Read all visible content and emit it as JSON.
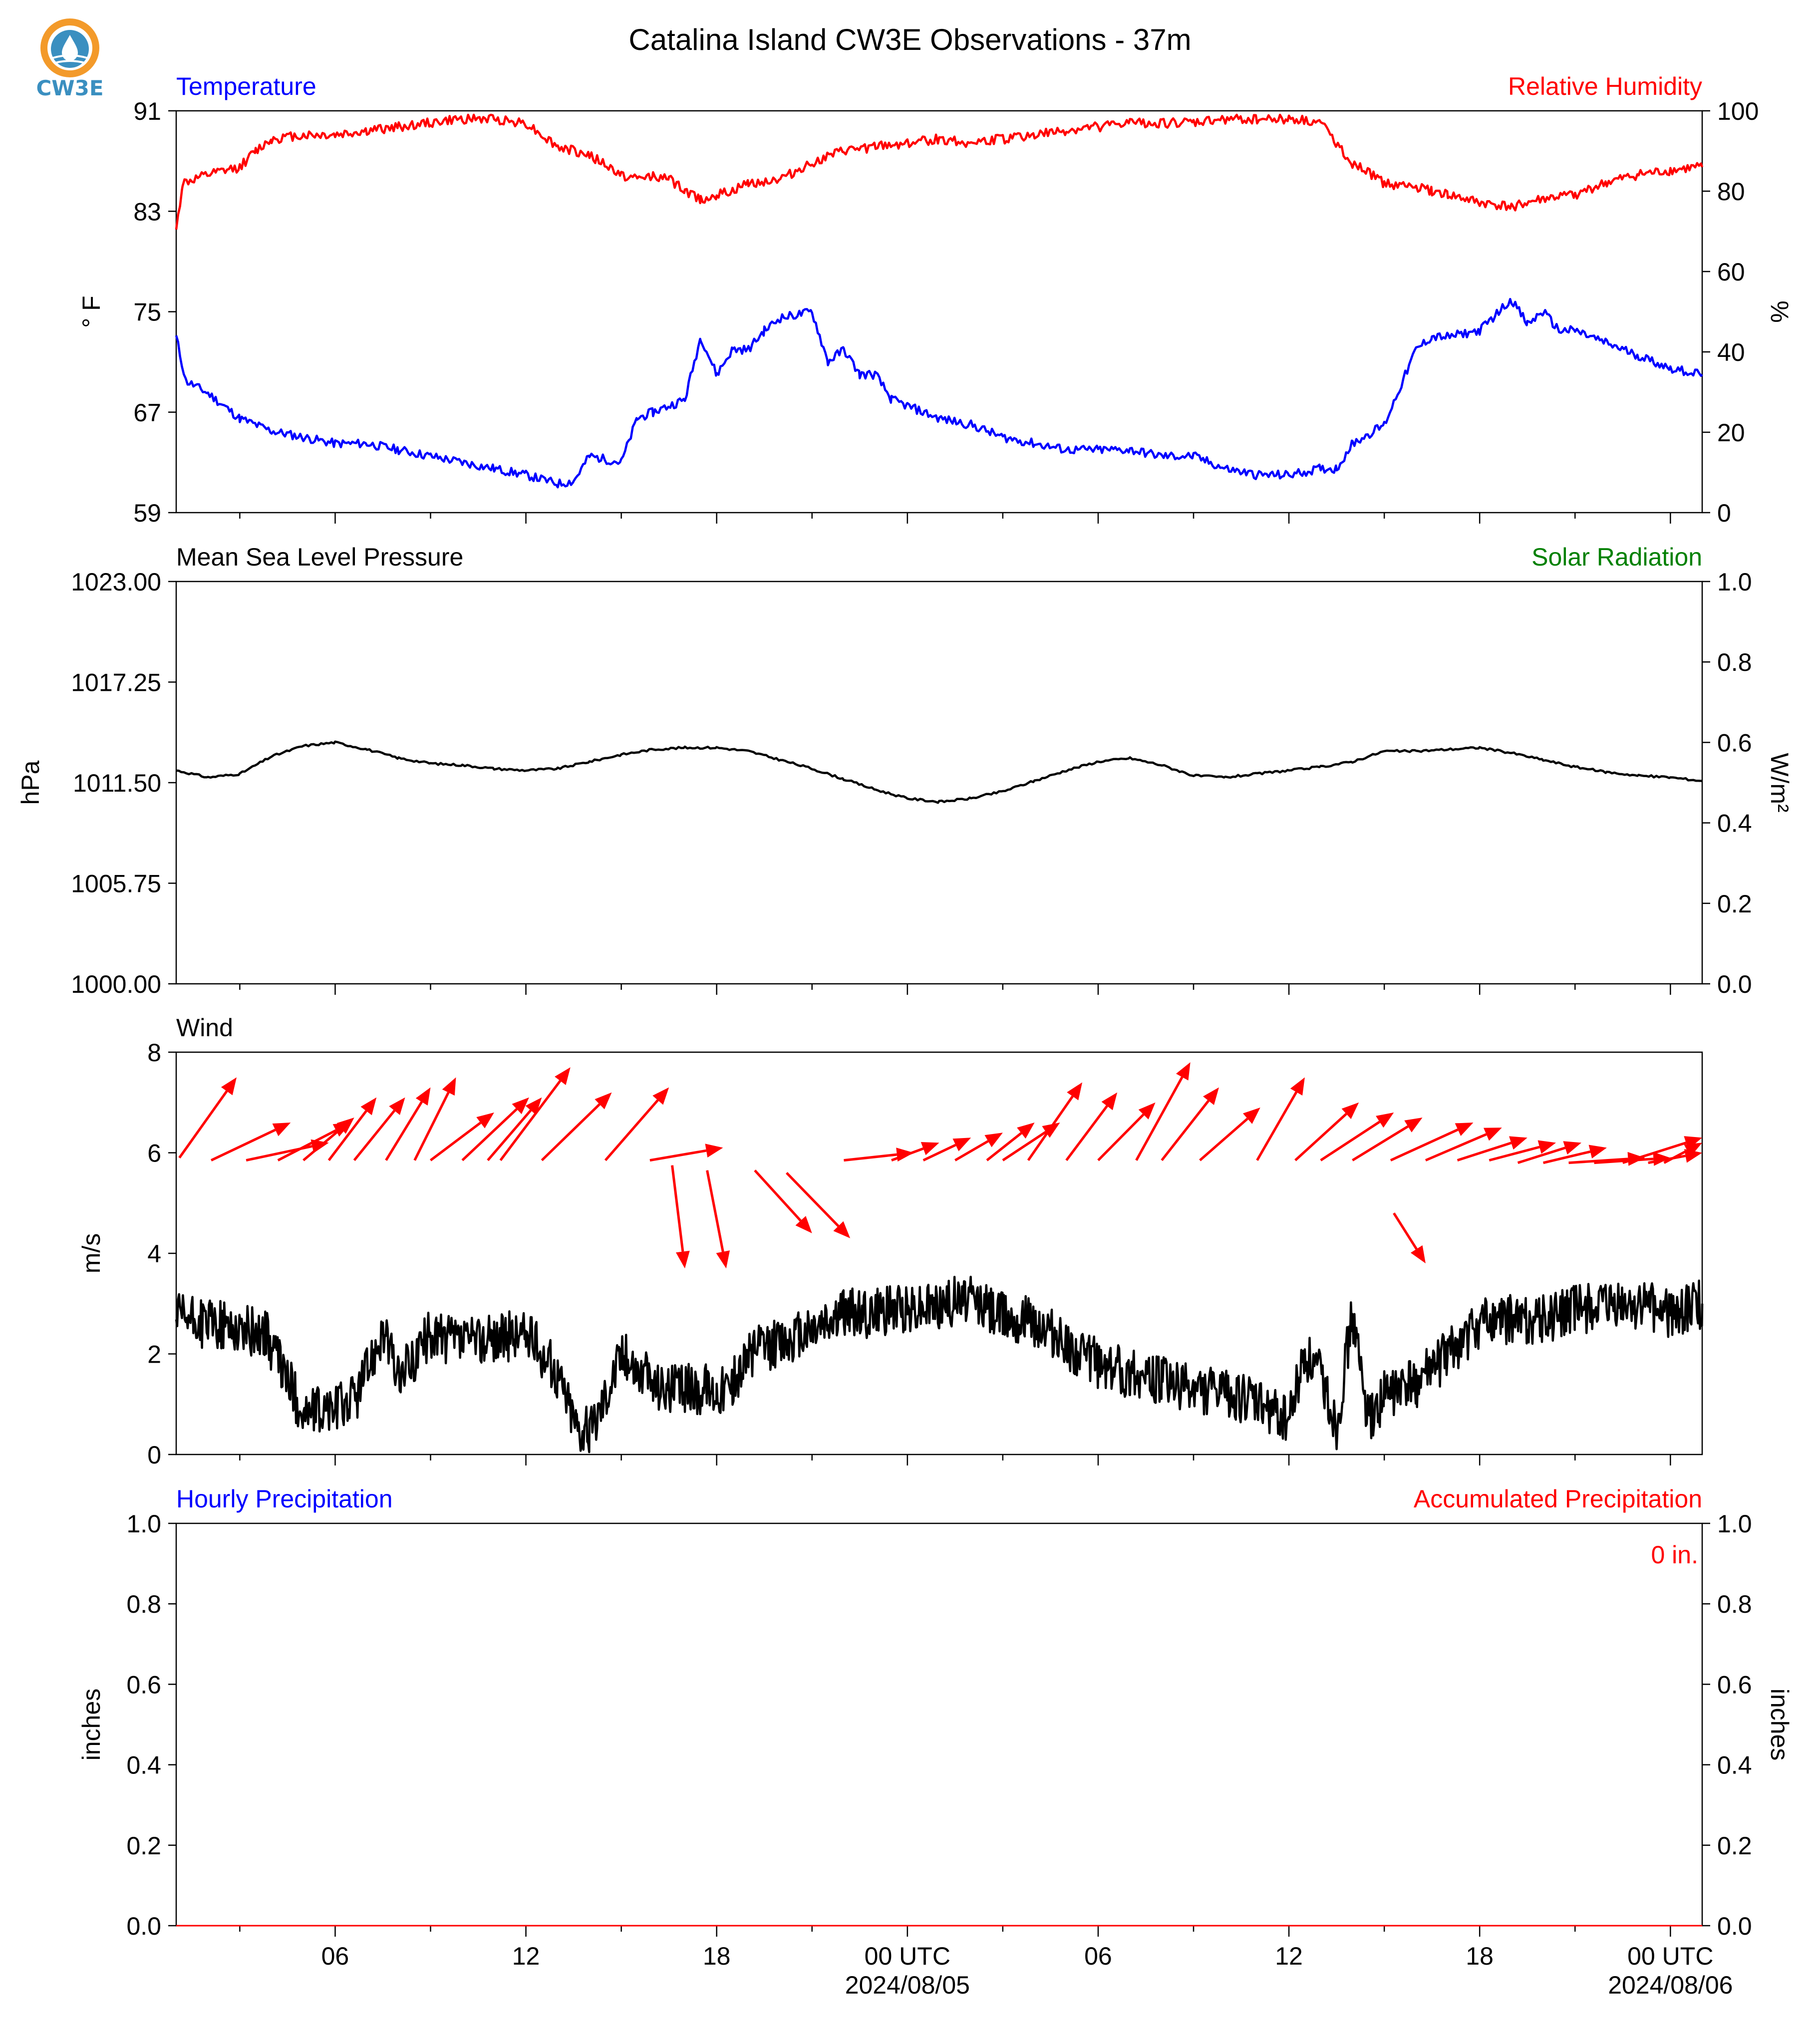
{
  "figure_title": "Catalina Island CW3E Observations - 37m",
  "logo": {
    "text": "CW3E",
    "colors": {
      "orange": "#f39a2a",
      "blue": "#3a8fc0"
    }
  },
  "colors": {
    "temperature": "#0000ff",
    "humidity": "#ff0000",
    "pressure": "#000000",
    "solar": "#008000",
    "wind_arrow": "#ff0000",
    "wind_speed": "#000000",
    "hourly_precip": "#0000ff",
    "accum_precip": "#ff0000"
  },
  "x_axis": {
    "range_hours": [
      0,
      48
    ],
    "ticks": [
      {
        "hour": 5,
        "label": "06",
        "sublabel": ""
      },
      {
        "hour": 11,
        "label": "12",
        "sublabel": ""
      },
      {
        "hour": 17,
        "label": "18",
        "sublabel": ""
      },
      {
        "hour": 23,
        "label": "00 UTC",
        "sublabel": "2024/08/05"
      },
      {
        "hour": 29,
        "label": "06",
        "sublabel": ""
      },
      {
        "hour": 35,
        "label": "12",
        "sublabel": ""
      },
      {
        "hour": 41,
        "label": "18",
        "sublabel": ""
      },
      {
        "hour": 47,
        "label": "00 UTC",
        "sublabel": "2024/08/06"
      }
    ]
  },
  "chart_data": [
    {
      "type": "line",
      "panel": "temperature-humidity",
      "left_label": "Temperature",
      "right_label": "Relative Humidity",
      "ylabel": "° F",
      "ylabel_right": "%",
      "ylim": [
        59,
        91
      ],
      "ylim_right": [
        0,
        100
      ],
      "yticks": [
        "59",
        "67",
        "75",
        "83",
        "91"
      ],
      "yticks_right": [
        "0",
        "20",
        "40",
        "60",
        "80",
        "100"
      ],
      "series": [
        {
          "name": "Temperature",
          "axis": "left",
          "x": [
            0,
            0.3,
            1,
            1.5,
            2,
            3,
            4,
            5,
            6,
            7,
            8,
            9,
            10,
            11,
            12,
            12.5,
            13,
            14,
            14.5,
            15,
            16,
            16.5,
            17,
            17.5,
            18,
            18.5,
            19,
            20,
            20.5,
            21,
            21.5,
            22,
            22.5,
            23,
            24,
            25,
            26,
            27,
            28,
            29,
            30,
            31,
            32,
            33,
            34,
            35,
            36,
            36.5,
            37,
            38,
            39,
            39.5,
            40,
            41,
            42,
            42.5,
            43,
            43.5,
            44,
            45,
            46,
            47,
            48
          ],
          "values": [
            73,
            69.5,
            68.5,
            67.5,
            66.5,
            65.5,
            65,
            64.5,
            64.5,
            64,
            63.5,
            63,
            62.5,
            62,
            61.3,
            61.5,
            63.5,
            63,
            66.5,
            67,
            68,
            73,
            70,
            72,
            72,
            73.5,
            74.5,
            75,
            71,
            72,
            70,
            70,
            68,
            67.5,
            66.5,
            66,
            65,
            64.5,
            64,
            64,
            64,
            63.5,
            63.5,
            62.5,
            62,
            62,
            62.5,
            62.5,
            64.5,
            66,
            72,
            73,
            73,
            73.5,
            76,
            74,
            75,
            73.5,
            73.5,
            72.5,
            71.5,
            70.5,
            70
          ]
        },
        {
          "name": "Relative Humidity",
          "axis": "right",
          "x": [
            0,
            0.2,
            1,
            2,
            2.5,
            3,
            4,
            5,
            6,
            7,
            8,
            9,
            10,
            11,
            12,
            13,
            14,
            14.5,
            15,
            15.5,
            16,
            16.5,
            17,
            17.5,
            18,
            19,
            20,
            21,
            22,
            23,
            24,
            25,
            26,
            27,
            28,
            29,
            30,
            31,
            32,
            33,
            34,
            35,
            36,
            37,
            38,
            39,
            39.5,
            40,
            41,
            42,
            43,
            44,
            45,
            46,
            47,
            48
          ],
          "values": [
            70,
            82,
            84,
            86,
            90,
            93,
            94,
            94,
            95,
            96,
            97,
            98,
            98,
            97,
            91,
            89,
            84,
            83,
            84,
            83,
            80,
            78,
            79,
            80,
            82,
            83,
            87,
            90,
            91,
            92,
            93,
            92,
            93,
            94,
            95,
            96,
            97,
            97,
            97,
            98,
            98,
            98,
            97,
            87,
            82,
            81,
            80,
            79,
            77,
            76,
            78,
            79,
            82,
            84,
            85,
            86
          ]
        }
      ]
    },
    {
      "type": "line",
      "panel": "pressure-solar",
      "left_label": "Mean Sea Level Pressure",
      "right_label": "Solar Radiation",
      "ylabel": "hPa",
      "ylabel_right": "W/m²",
      "ylim": [
        1000,
        1023
      ],
      "ylim_right": [
        0,
        1
      ],
      "yticks": [
        "1000.00",
        "1005.75",
        "1011.50",
        "1017.25",
        "1023.00"
      ],
      "yticks_right": [
        "0.0",
        "0.2",
        "0.4",
        "0.6",
        "0.8",
        "1.0"
      ],
      "series": [
        {
          "name": "Mean Sea Level Pressure",
          "axis": "left",
          "x": [
            0,
            1,
            2,
            3,
            4,
            5,
            6,
            7,
            8,
            9,
            10,
            11,
            12,
            13,
            14,
            15,
            16,
            17,
            18,
            19,
            20,
            21,
            22,
            23,
            24,
            25,
            26,
            27,
            28,
            29,
            30,
            31,
            32,
            33,
            34,
            35,
            36,
            37,
            38,
            39,
            40,
            41,
            42,
            43,
            44,
            45,
            46,
            47,
            48
          ],
          "values": [
            1012.2,
            1011.8,
            1012.0,
            1013.0,
            1013.6,
            1013.8,
            1013.4,
            1012.9,
            1012.6,
            1012.5,
            1012.3,
            1012.2,
            1012.3,
            1012.7,
            1013.1,
            1013.4,
            1013.5,
            1013.5,
            1013.3,
            1012.8,
            1012.3,
            1011.7,
            1011.1,
            1010.6,
            1010.4,
            1010.6,
            1011.0,
            1011.6,
            1012.2,
            1012.7,
            1012.9,
            1012.5,
            1011.9,
            1011.8,
            1012.0,
            1012.2,
            1012.4,
            1012.7,
            1013.3,
            1013.3,
            1013.4,
            1013.5,
            1013.2,
            1012.8,
            1012.4,
            1012.1,
            1011.9,
            1011.8,
            1011.6
          ]
        }
      ]
    },
    {
      "type": "line",
      "panel": "wind",
      "left_label": "Wind",
      "ylabel": "m/s",
      "ylim": [
        0,
        8
      ],
      "yticks": [
        "0",
        "2",
        "4",
        "6",
        "8"
      ],
      "series": [
        {
          "name": "Wind",
          "x": [
            0,
            1,
            2,
            2.8,
            3.5,
            4,
            5,
            5.7,
            6.5,
            7,
            8,
            9,
            10,
            11,
            11.5,
            12,
            12.6,
            13,
            14,
            15,
            16,
            17,
            17.5,
            18,
            19,
            20,
            21,
            22,
            23,
            24,
            25,
            26,
            27,
            28,
            29,
            30,
            31,
            32,
            33,
            34,
            35,
            35.5,
            36,
            36.5,
            37,
            37.5,
            38,
            39,
            40,
            41,
            42,
            43,
            44,
            45,
            46,
            47,
            48
          ],
          "values": [
            2.7,
            2.6,
            2.5,
            2.4,
            1.5,
            0.8,
            0.9,
            1.2,
            2.5,
            1.5,
            2.4,
            2.2,
            2.3,
            2.4,
            2.0,
            1.6,
            0.6,
            0.4,
            2.0,
            1.4,
            1.3,
            1.3,
            1.4,
            2.0,
            2.2,
            2.5,
            2.8,
            2.8,
            2.9,
            3.0,
            3.1,
            2.8,
            2.6,
            2.2,
            1.8,
            1.6,
            1.5,
            1.3,
            1.2,
            1.0,
            0.7,
            2.0,
            1.6,
            0.6,
            2.8,
            0.6,
            1.2,
            1.4,
            2.0,
            2.6,
            2.7,
            2.7,
            2.9,
            2.9,
            3.0,
            2.8,
            3.0
          ]
        }
      ],
      "wind_vectors": {
        "description": "arrow start (hour, m/s) and end (hour, m/s) in chart units",
        "arrows": [
          [
            0.1,
            5.9,
            1.9,
            7.5
          ],
          [
            1.1,
            5.85,
            3.6,
            6.6
          ],
          [
            2.2,
            5.85,
            4.8,
            6.2
          ],
          [
            3.2,
            5.85,
            5.5,
            6.6
          ],
          [
            4.0,
            5.85,
            5.6,
            6.7
          ],
          [
            4.8,
            5.85,
            6.3,
            7.1
          ],
          [
            5.6,
            5.85,
            7.2,
            7.1
          ],
          [
            6.6,
            5.85,
            8.0,
            7.3
          ],
          [
            7.5,
            5.85,
            8.8,
            7.5
          ],
          [
            8.0,
            5.85,
            10.0,
            6.8
          ],
          [
            9.0,
            5.85,
            11.1,
            7.1
          ],
          [
            9.8,
            5.85,
            11.5,
            7.1
          ],
          [
            10.2,
            5.85,
            12.4,
            7.7
          ],
          [
            11.5,
            5.85,
            13.7,
            7.2
          ],
          [
            13.5,
            5.85,
            15.5,
            7.3
          ],
          [
            14.9,
            5.85,
            17.2,
            6.1
          ],
          [
            15.6,
            5.75,
            16.0,
            3.7
          ],
          [
            16.7,
            5.65,
            17.3,
            3.7
          ],
          [
            18.2,
            5.65,
            20.0,
            4.4
          ],
          [
            19.2,
            5.6,
            21.2,
            4.3
          ],
          [
            21.0,
            5.85,
            23.2,
            6.0
          ],
          [
            22.5,
            5.85,
            24.0,
            6.2
          ],
          [
            23.5,
            5.85,
            25.0,
            6.3
          ],
          [
            24.5,
            5.85,
            26.0,
            6.4
          ],
          [
            25.5,
            5.85,
            27.0,
            6.6
          ],
          [
            26.0,
            5.85,
            27.8,
            6.6
          ],
          [
            26.8,
            5.85,
            28.5,
            7.4
          ],
          [
            28.0,
            5.85,
            29.6,
            7.2
          ],
          [
            29.0,
            5.85,
            30.8,
            7.0
          ],
          [
            30.2,
            5.85,
            31.9,
            7.8
          ],
          [
            31.0,
            5.85,
            32.8,
            7.3
          ],
          [
            32.2,
            5.85,
            34.1,
            6.9
          ],
          [
            34.0,
            5.85,
            35.5,
            7.5
          ],
          [
            35.2,
            5.85,
            37.2,
            7.0
          ],
          [
            36.0,
            5.85,
            38.3,
            6.8
          ],
          [
            37.0,
            5.85,
            39.2,
            6.7
          ],
          [
            38.2,
            5.85,
            40.8,
            6.6
          ],
          [
            38.3,
            4.8,
            39.3,
            3.8
          ],
          [
            39.3,
            5.85,
            41.7,
            6.5
          ],
          [
            40.3,
            5.85,
            42.5,
            6.3
          ],
          [
            41.3,
            5.85,
            43.4,
            6.2
          ],
          [
            42.2,
            5.8,
            44.2,
            6.2
          ],
          [
            43.0,
            5.8,
            45.0,
            6.1
          ],
          [
            43.8,
            5.8,
            46.2,
            5.9
          ],
          [
            44.6,
            5.8,
            47.0,
            5.9
          ],
          [
            45.5,
            5.8,
            48.0,
            6.3
          ],
          [
            46.3,
            5.8,
            48.0,
            6.0
          ],
          [
            46.8,
            5.8,
            48.0,
            6.2
          ]
        ]
      }
    },
    {
      "type": "line",
      "panel": "precipitation",
      "left_label": "Hourly Precipitation",
      "right_label": "Accumulated Precipitation",
      "annotation": "0 in.",
      "ylabel": "inches",
      "ylabel_right": "inches",
      "ylim": [
        0,
        1
      ],
      "ylim_right": [
        0,
        1
      ],
      "yticks": [
        "0.0",
        "0.2",
        "0.4",
        "0.6",
        "0.8",
        "1.0"
      ],
      "yticks_right": [
        "0.0",
        "0.2",
        "0.4",
        "0.6",
        "0.8",
        "1.0"
      ],
      "series": [
        {
          "name": "Hourly Precipitation",
          "axis": "left",
          "x": [
            0,
            48
          ],
          "values": [
            0,
            0
          ]
        },
        {
          "name": "Accumulated Precipitation",
          "axis": "right",
          "x": [
            0,
            48
          ],
          "values": [
            0,
            0
          ]
        }
      ]
    }
  ]
}
